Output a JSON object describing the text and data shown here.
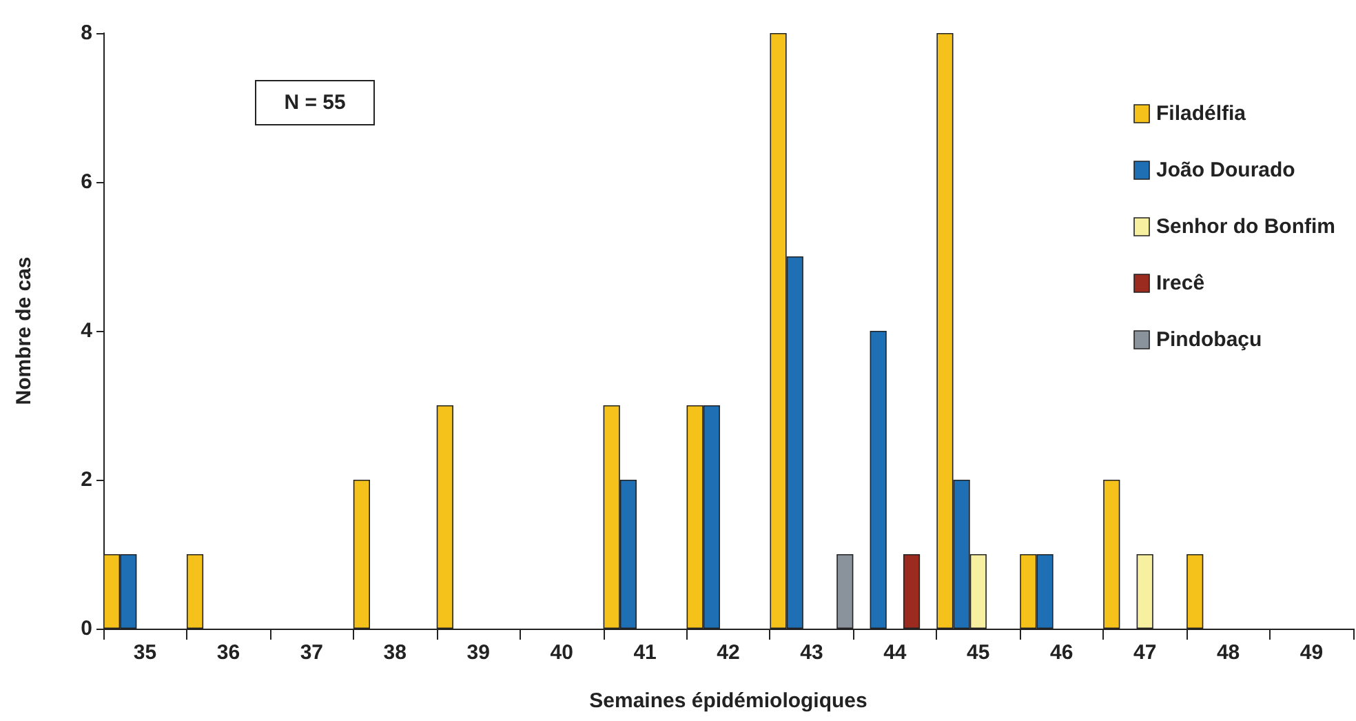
{
  "chart_data": {
    "type": "bar",
    "xlabel": "Semaines épidémiologiques",
    "ylabel": "Nombre de cas",
    "categories": [
      "35",
      "36",
      "37",
      "38",
      "39",
      "40",
      "41",
      "42",
      "43",
      "44",
      "45",
      "46",
      "47",
      "48",
      "49"
    ],
    "series": [
      {
        "name": "Filadélfia",
        "color": "#f5c21b",
        "values": [
          1,
          1,
          null,
          2,
          3,
          null,
          3,
          3,
          8,
          null,
          8,
          1,
          2,
          1,
          null
        ]
      },
      {
        "name": "João Dourado",
        "color": "#1f6fb5",
        "values": [
          1,
          null,
          null,
          null,
          null,
          null,
          2,
          3,
          5,
          4,
          2,
          1,
          null,
          null,
          null
        ]
      },
      {
        "name": "Senhor do Bonfim",
        "color": "#f7f0a0",
        "values": [
          null,
          null,
          null,
          null,
          null,
          null,
          null,
          null,
          null,
          null,
          1,
          null,
          1,
          null,
          null
        ]
      },
      {
        "name": "Irecê",
        "color": "#9b2a1f",
        "values": [
          null,
          null,
          null,
          null,
          null,
          null,
          null,
          null,
          null,
          1,
          null,
          null,
          null,
          null,
          null
        ]
      },
      {
        "name": "Pindobaçu",
        "color": "#8a939b",
        "values": [
          null,
          null,
          null,
          null,
          null,
          null,
          null,
          null,
          1,
          null,
          null,
          null,
          null,
          null,
          null
        ]
      }
    ],
    "ylim": [
      0,
      8
    ],
    "yticks": [
      0,
      2,
      4,
      6,
      8
    ],
    "grid": false,
    "legend": "right",
    "annotations": [
      "N = 55"
    ]
  }
}
